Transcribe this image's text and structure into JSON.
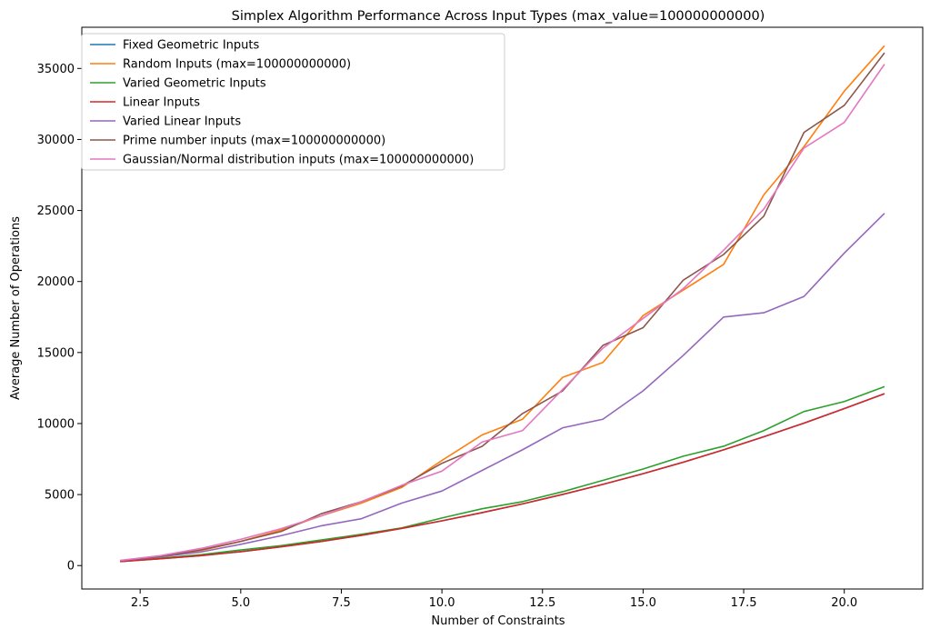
{
  "chart_data": {
    "type": "line",
    "title": "Simplex Algorithm Performance Across Input Types (max_value=100000000000)",
    "xlabel": "Number of Constraints",
    "ylabel": "Average Number of Operations",
    "xlim": [
      1.05,
      21.95
    ],
    "ylim": [
      -1650,
      37900
    ],
    "xticks": [
      2.5,
      5.0,
      7.5,
      10.0,
      12.5,
      15.0,
      17.5,
      20.0
    ],
    "xtick_labels": [
      "2.5",
      "5.0",
      "7.5",
      "10.0",
      "12.5",
      "15.0",
      "17.5",
      "20.0"
    ],
    "yticks": [
      0,
      5000,
      10000,
      15000,
      20000,
      25000,
      30000,
      35000
    ],
    "ytick_labels": [
      "0",
      "5000",
      "10000",
      "15000",
      "20000",
      "25000",
      "30000",
      "35000"
    ],
    "grid": false,
    "legend_position": "upper-left",
    "x": [
      2,
      3,
      4,
      5,
      6,
      7,
      8,
      9,
      10,
      11,
      12,
      13,
      14,
      15,
      16,
      17,
      18,
      19,
      20,
      21
    ],
    "series": [
      {
        "name": "Fixed Geometric Inputs",
        "color": "#1f77b4",
        "values": [
          280,
          480,
          700,
          980,
          1320,
          1700,
          2130,
          2620,
          3150,
          3730,
          4340,
          5010,
          5720,
          6470,
          7280,
          8150,
          9070,
          10030,
          11050,
          12100
        ]
      },
      {
        "name": "Random Inputs (max=100000000000)",
        "color": "#ff7f0e",
        "values": [
          350,
          650,
          1050,
          1700,
          2500,
          3500,
          4400,
          5500,
          7400,
          9200,
          10300,
          13250,
          14300,
          17600,
          19400,
          21200,
          26100,
          29500,
          33400,
          36600
        ]
      },
      {
        "name": "Varied Geometric Inputs",
        "color": "#2ca02c",
        "values": [
          290,
          520,
          760,
          1100,
          1400,
          1800,
          2200,
          2650,
          3350,
          4000,
          4500,
          5200,
          6000,
          6800,
          7700,
          8400,
          9500,
          10850,
          11550,
          12600
        ]
      },
      {
        "name": "Linear Inputs",
        "color": "#d62728",
        "values": [
          280,
          480,
          700,
          980,
          1320,
          1700,
          2130,
          2620,
          3150,
          3730,
          4340,
          5010,
          5720,
          6470,
          7280,
          8150,
          9070,
          10030,
          11050,
          12100
        ]
      },
      {
        "name": "Varied Linear Inputs",
        "color": "#9467bd",
        "values": [
          340,
          620,
          950,
          1500,
          2100,
          2800,
          3300,
          4400,
          5250,
          6700,
          8150,
          9700,
          10300,
          12300,
          14800,
          17500,
          17800,
          18950,
          22000,
          24800
        ]
      },
      {
        "name": "Prime number inputs (max=100000000000)",
        "color": "#8c564b",
        "values": [
          350,
          650,
          1100,
          1700,
          2400,
          3650,
          4500,
          5600,
          7200,
          8400,
          10700,
          12300,
          15500,
          16750,
          20100,
          21900,
          24600,
          30500,
          32400,
          36100
        ]
      },
      {
        "name": "Gaussian/Normal distribution inputs (max=100000000000)",
        "color": "#e377c2",
        "values": [
          360,
          700,
          1200,
          1850,
          2600,
          3500,
          4500,
          5650,
          6650,
          8700,
          9500,
          12400,
          15300,
          17400,
          19500,
          22200,
          25100,
          29400,
          31200,
          35300
        ]
      }
    ]
  }
}
